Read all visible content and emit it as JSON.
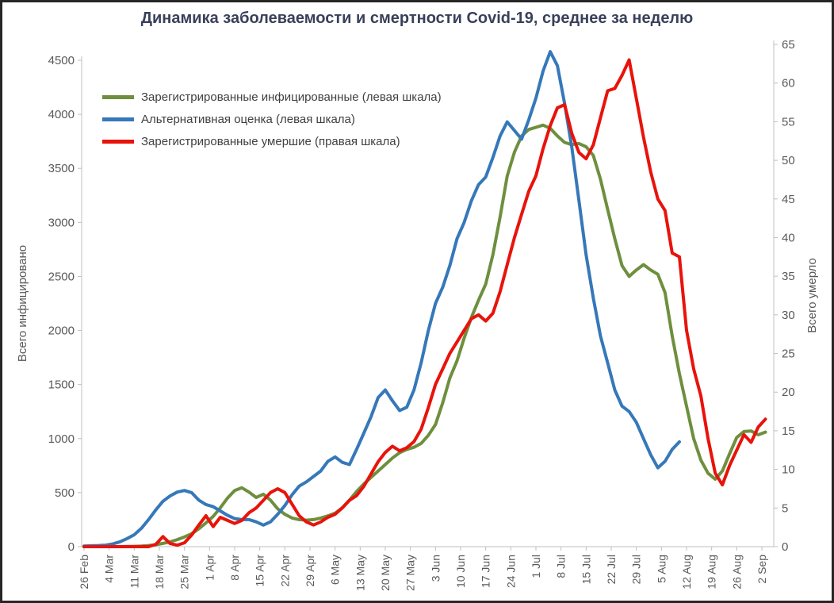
{
  "title": "Динамика заболеваемости и смертности Covid-19, среднее за неделю",
  "chart_data": {
    "type": "line",
    "title": "Динамика заболеваемости и смертности Covid-19, среднее за неделю",
    "grid": false,
    "legend_position": "upper-left-inside",
    "x_axis": {
      "tick_step_days": 7,
      "tick_labels": [
        "26 Feb",
        "4 Mar",
        "11 Mar",
        "18 Mar",
        "25 Mar",
        "1 Apr",
        "8 Apr",
        "15 Apr",
        "22 Apr",
        "29 Apr",
        "6 May",
        "13 May",
        "20 May",
        "27 May",
        "3 Jun",
        "10 Jun",
        "17 Jun",
        "24 Jun",
        "1 Jul",
        "8 Jul",
        "15 Jul",
        "22 Jul",
        "29 Jul",
        "5 Aug",
        "12 Aug",
        "19 Aug",
        "26 Aug",
        "2 Sep"
      ]
    },
    "left_axis": {
      "title": "Всего инфицировано",
      "min": 0,
      "max": 4500,
      "step": 500
    },
    "right_axis": {
      "title": "Всего умерло",
      "min": 0,
      "max": 65,
      "step": 5
    },
    "sampling": {
      "start_day": 0,
      "step_days": 2
    },
    "series": [
      {
        "name": "Зарегистрированные инфицированные (левая шкала)",
        "axis": "left",
        "color": "#6e8f3e",
        "values": [
          0,
          0,
          0,
          0,
          0,
          0,
          2,
          3,
          5,
          10,
          18,
          30,
          45,
          65,
          90,
          120,
          165,
          220,
          280,
          360,
          450,
          520,
          545,
          505,
          455,
          485,
          430,
          350,
          300,
          265,
          250,
          245,
          250,
          265,
          285,
          310,
          360,
          430,
          510,
          580,
          640,
          700,
          760,
          820,
          870,
          900,
          920,
          955,
          1030,
          1130,
          1330,
          1560,
          1720,
          1930,
          2120,
          2280,
          2430,
          2700,
          3050,
          3430,
          3650,
          3800,
          3860,
          3880,
          3900,
          3870,
          3800,
          3740,
          3720,
          3730,
          3700,
          3620,
          3400,
          3120,
          2850,
          2600,
          2500,
          2560,
          2610,
          2560,
          2520,
          2350,
          1950,
          1600,
          1300,
          1000,
          800,
          680,
          625,
          700,
          860,
          1010,
          1065,
          1070,
          1035,
          1060
        ]
      },
      {
        "name": "Альтернативная оценка (левая шкала)",
        "axis": "left",
        "color": "#3678b9",
        "values": [
          5,
          8,
          10,
          14,
          25,
          45,
          75,
          110,
          170,
          250,
          340,
          420,
          470,
          505,
          520,
          500,
          430,
          390,
          370,
          330,
          290,
          260,
          250,
          250,
          230,
          200,
          230,
          300,
          380,
          480,
          560,
          600,
          650,
          700,
          790,
          830,
          780,
          760,
          900,
          1050,
          1200,
          1380,
          1450,
          1350,
          1260,
          1290,
          1450,
          1700,
          2000,
          2250,
          2400,
          2600,
          2850,
          3000,
          3200,
          3350,
          3420,
          3600,
          3800,
          3930,
          3850,
          3770,
          3950,
          4150,
          4400,
          4580,
          4450,
          4100,
          3700,
          3200,
          2700,
          2300,
          1950,
          1700,
          1450,
          1300,
          1250,
          1150,
          1000,
          850,
          730,
          790,
          900,
          970,
          null,
          null,
          null,
          null,
          null,
          null,
          null,
          null,
          null,
          null,
          null,
          null
        ]
      },
      {
        "name": "Зарегистрированные умершие (правая шкала)",
        "axis": "right",
        "color": "#e8130b",
        "values": [
          0,
          0,
          0,
          0,
          0,
          0,
          0,
          0,
          0,
          0,
          0.3,
          1.3,
          0.4,
          0.2,
          0.5,
          1.5,
          2.8,
          4,
          2.6,
          3.8,
          3.4,
          3,
          3.4,
          4.4,
          5,
          6,
          7,
          7.5,
          7,
          5.5,
          4,
          3.2,
          2.8,
          3.2,
          3.8,
          4.2,
          5,
          6,
          6.6,
          7.8,
          9.4,
          11,
          12.2,
          13,
          12.4,
          12.8,
          13.6,
          15.2,
          18,
          21,
          23,
          25,
          26.5,
          28,
          29.5,
          30,
          29.2,
          30.2,
          33,
          36.5,
          40,
          43,
          46,
          48,
          51.5,
          54.5,
          56.8,
          57.2,
          53.5,
          51,
          50.2,
          52,
          55.5,
          59,
          59.3,
          61,
          63,
          58,
          53,
          48.5,
          45,
          43.5,
          38,
          37.5,
          28,
          23,
          19.5,
          14,
          9.5,
          8,
          10.5,
          12.5,
          14.5,
          13.5,
          15.5,
          16.5
        ]
      }
    ]
  },
  "colors": {
    "tick_label": "#595959",
    "axis_line": "#bfbfbf",
    "title": "#39405a",
    "legend_text": "#404040"
  }
}
